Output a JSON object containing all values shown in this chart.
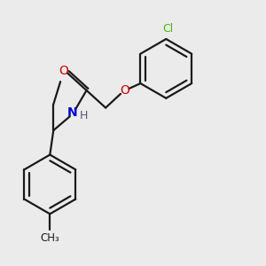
{
  "background_color": "#ebebeb",
  "bond_color": "#1a1a1a",
  "bond_width": 1.6,
  "fig_size": [
    3.0,
    3.0
  ],
  "dpi": 100,
  "colors": {
    "O": "#cc0000",
    "N": "#0000cc",
    "Cl": "#44bb00",
    "C": "#1a1a1a",
    "H": "#555577"
  },
  "xlim": [
    0.0,
    6.5
  ],
  "ylim": [
    0.0,
    7.5
  ]
}
